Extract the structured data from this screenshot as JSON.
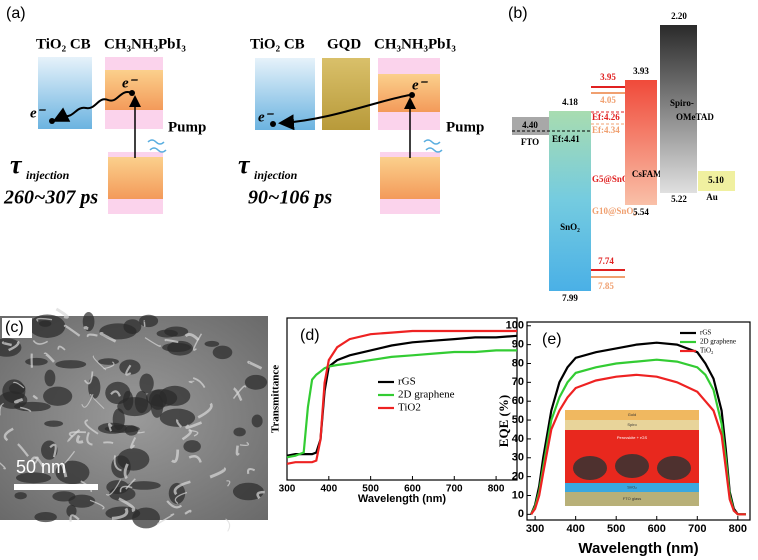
{
  "panel_a": {
    "label": "(a)",
    "left": {
      "band1": "TiO₂ CB",
      "band2": "CH₃NH₃PbI₃",
      "electron1": "e⁻",
      "electron2": "e⁻",
      "pump": "Pump",
      "tau": "τ",
      "tau_sub": "injection",
      "time": "260~307 ps"
    },
    "right": {
      "band1": "TiO₂ CB",
      "band2": "GQD",
      "band3": "CH₃NH₃PbI₃",
      "electron1": "e⁻",
      "electron2": "e⁻",
      "pump": "Pump",
      "tau": "τ",
      "tau_sub": "injection",
      "time": "90~106 ps"
    }
  },
  "panel_b": {
    "label": "(b)",
    "fto": {
      "level": "4.40",
      "name": "FTO"
    },
    "sno2": {
      "top": "4.18",
      "bottom": "7.99",
      "fermi": "Ef:4.41",
      "name": "SnO₂"
    },
    "g5": {
      "cb": "3.95",
      "fermi": "Ef:4.26",
      "name": "G5@SnO₂",
      "vb": "7.74"
    },
    "g10": {
      "cb": "4.05",
      "fermi": "Ef:4.34",
      "name": "G10@SnO₂",
      "vb": "7.85"
    },
    "csfama": {
      "top": "3.93",
      "bottom": "5.54",
      "name": "CsFAMA"
    },
    "spiro": {
      "top": "2.20",
      "bottom": "5.22",
      "name": [
        "Spiro-",
        "OMeTAD"
      ]
    },
    "au": {
      "level": "5.10",
      "name": "Au"
    }
  },
  "panel_c": {
    "label": "(c)",
    "scale": "50 nm"
  },
  "chart_data": [
    {
      "type": "line",
      "label": "(d)",
      "xlabel": "Wavelength (nm)",
      "ylabel": "Transmittance",
      "x": [
        300,
        320,
        340,
        350,
        360,
        370,
        380,
        390,
        400,
        420,
        450,
        500,
        550,
        600,
        650,
        700,
        750,
        800,
        850
      ],
      "xlim": [
        300,
        850
      ],
      "ylim": [
        0,
        1
      ],
      "xticks": [
        300,
        400,
        500,
        600,
        700,
        800
      ],
      "series": [
        {
          "name": "rGS",
          "color": "#000000",
          "values": [
            0.15,
            0.16,
            0.16,
            0.16,
            0.16,
            0.17,
            0.25,
            0.55,
            0.7,
            0.74,
            0.77,
            0.8,
            0.83,
            0.85,
            0.86,
            0.87,
            0.88,
            0.88,
            0.89
          ]
        },
        {
          "name": "2D graphene",
          "color": "#33cc33",
          "values": [
            0.14,
            0.15,
            0.17,
            0.45,
            0.62,
            0.65,
            0.67,
            0.69,
            0.7,
            0.71,
            0.72,
            0.74,
            0.76,
            0.77,
            0.78,
            0.79,
            0.79,
            0.8,
            0.8
          ]
        },
        {
          "name": "TiO2",
          "color": "#ee2222",
          "values": [
            0.1,
            0.11,
            0.11,
            0.11,
            0.11,
            0.12,
            0.25,
            0.6,
            0.74,
            0.82,
            0.87,
            0.9,
            0.91,
            0.92,
            0.92,
            0.92,
            0.92,
            0.92,
            0.92
          ]
        }
      ]
    },
    {
      "type": "line",
      "label": "(e)",
      "xlabel": "Wavelength (nm)",
      "ylabel": "EQE (%)",
      "x": [
        290,
        300,
        310,
        320,
        340,
        360,
        380,
        400,
        450,
        500,
        550,
        600,
        650,
        700,
        720,
        740,
        760,
        770,
        780,
        790,
        800,
        820
      ],
      "xlim": [
        280,
        830
      ],
      "ylim": [
        -3,
        102
      ],
      "xticks": [
        300,
        400,
        500,
        600,
        700,
        800
      ],
      "yticks": [
        0,
        10,
        20,
        30,
        40,
        50,
        60,
        70,
        80,
        90,
        100
      ],
      "inset": [
        "Gold",
        "Spiro",
        "Perovskite + rGS",
        "SnO₂",
        "FTO glass"
      ],
      "series": [
        {
          "name": "rGS",
          "color": "#000000",
          "values": [
            0,
            5,
            15,
            30,
            55,
            70,
            78,
            83,
            86,
            88,
            90,
            91,
            90,
            86,
            80,
            72,
            55,
            35,
            12,
            3,
            0,
            0
          ]
        },
        {
          "name": "2D graphene",
          "color": "#33cc33",
          "values": [
            0,
            4,
            12,
            25,
            50,
            62,
            70,
            75,
            78,
            80,
            81,
            82,
            81,
            78,
            74,
            66,
            48,
            30,
            10,
            2,
            0,
            0
          ]
        },
        {
          "name": "TiO₂",
          "color": "#ee2222",
          "values": [
            0,
            3,
            10,
            22,
            45,
            55,
            62,
            67,
            71,
            73,
            74,
            73,
            70,
            65,
            60,
            55,
            42,
            25,
            8,
            2,
            0,
            0
          ]
        }
      ]
    }
  ]
}
